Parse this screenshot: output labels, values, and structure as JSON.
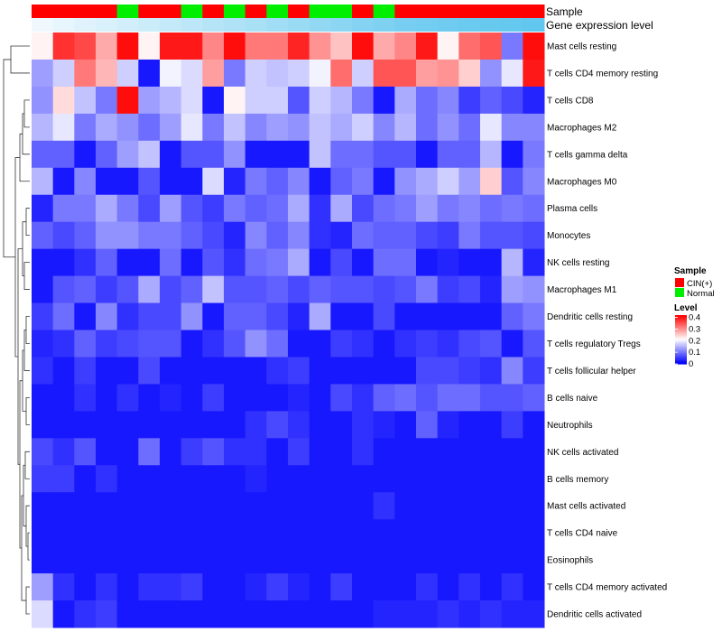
{
  "chart_data": {
    "type": "heatmap",
    "annotation_labels": [
      "Sample",
      "Gene expression level"
    ],
    "sample_groups": [
      "CIN(+)",
      "CIN(+)",
      "CIN(+)",
      "CIN(+)",
      "Normal",
      "CIN(+)",
      "CIN(+)",
      "Normal",
      "CIN(+)",
      "Normal",
      "CIN(+)",
      "Normal",
      "CIN(+)",
      "Normal",
      "Normal",
      "CIN(+)",
      "Normal",
      "CIN(+)",
      "CIN(+)",
      "CIN(+)",
      "CIN(+)",
      "CIN(+)",
      "CIN(+)",
      "CIN(+)"
    ],
    "expression_level": [
      0.0,
      0.05,
      0.1,
      0.15,
      0.2,
      0.25,
      0.3,
      0.35,
      0.4,
      0.45,
      0.5,
      0.55,
      0.6,
      0.65,
      0.7,
      0.75,
      0.8,
      0.85,
      0.88,
      0.91,
      0.94,
      0.96,
      0.98,
      1.0
    ],
    "legends": {
      "sample_title": "Sample",
      "sample_items": [
        {
          "label": "CIN(+)",
          "color": "#ff0000"
        },
        {
          "label": "Normal",
          "color": "#00ee00"
        }
      ],
      "level_title": "Level",
      "level_ticks": [
        "0.4",
        "0.3",
        "0.2",
        "0.1",
        "0"
      ],
      "level_tick_values": [
        0.4,
        0.3,
        0.2,
        0.1,
        0.0
      ],
      "level_range": [
        0,
        0.42
      ]
    },
    "colors": {
      "low": "#0000ff",
      "mid": "#ffffff",
      "high": "#ff0000",
      "strip_light": "#eef8fd",
      "strip_dark": "#62c7ee"
    },
    "rows": [
      {
        "label": "Mast cells resting",
        "values": [
          0.22,
          0.38,
          0.36,
          0.28,
          0.41,
          0.22,
          0.4,
          0.4,
          0.31,
          0.41,
          0.32,
          0.32,
          0.39,
          0.3,
          0.26,
          0.41,
          0.28,
          0.31,
          0.4,
          0.22,
          0.33,
          0.35,
          0.1,
          0.41
        ]
      },
      {
        "label": "T cells CD4 memory resting",
        "values": [
          0.13,
          0.17,
          0.32,
          0.27,
          0.17,
          0.02,
          0.2,
          0.18,
          0.29,
          0.1,
          0.17,
          0.16,
          0.17,
          0.2,
          0.33,
          0.17,
          0.35,
          0.35,
          0.29,
          0.3,
          0.25,
          0.12,
          0.19,
          0.4
        ]
      },
      {
        "label": "T cells CD8",
        "values": [
          0.12,
          0.24,
          0.16,
          0.1,
          0.41,
          0.13,
          0.15,
          0.18,
          0.02,
          0.22,
          0.17,
          0.17,
          0.07,
          0.17,
          0.15,
          0.1,
          0.02,
          0.14,
          0.09,
          0.11,
          0.05,
          0.08,
          0.06,
          0.03
        ]
      },
      {
        "label": "Macrophages M2",
        "values": [
          0.15,
          0.19,
          0.1,
          0.14,
          0.12,
          0.09,
          0.13,
          0.19,
          0.1,
          0.16,
          0.11,
          0.13,
          0.12,
          0.16,
          0.14,
          0.17,
          0.11,
          0.15,
          0.09,
          0.12,
          0.09,
          0.19,
          0.11,
          0.11
        ]
      },
      {
        "label": "T cells gamma delta",
        "values": [
          0.08,
          0.08,
          0.02,
          0.08,
          0.13,
          0.16,
          0.02,
          0.07,
          0.07,
          0.12,
          0.02,
          0.02,
          0.02,
          0.16,
          0.09,
          0.09,
          0.07,
          0.07,
          0.02,
          0.08,
          0.08,
          0.15,
          0.02,
          0.1
        ]
      },
      {
        "label": "Macrophages M0",
        "values": [
          0.15,
          0.02,
          0.11,
          0.02,
          0.02,
          0.07,
          0.02,
          0.02,
          0.18,
          0.03,
          0.1,
          0.08,
          0.11,
          0.02,
          0.08,
          0.1,
          0.02,
          0.12,
          0.14,
          0.17,
          0.13,
          0.25,
          0.07,
          0.11
        ]
      },
      {
        "label": "Plasma cells",
        "values": [
          0.03,
          0.1,
          0.1,
          0.14,
          0.1,
          0.06,
          0.13,
          0.07,
          0.05,
          0.1,
          0.08,
          0.09,
          0.14,
          0.04,
          0.14,
          0.06,
          0.09,
          0.1,
          0.13,
          0.1,
          0.11,
          0.09,
          0.1,
          0.09
        ]
      },
      {
        "label": "Monocytes",
        "values": [
          0.08,
          0.06,
          0.08,
          0.12,
          0.12,
          0.1,
          0.1,
          0.08,
          0.06,
          0.03,
          0.11,
          0.08,
          0.11,
          0.04,
          0.03,
          0.09,
          0.08,
          0.08,
          0.06,
          0.05,
          0.1,
          0.07,
          0.07,
          0.06
        ]
      },
      {
        "label": "NK cells resting",
        "values": [
          0.02,
          0.02,
          0.04,
          0.08,
          0.02,
          0.02,
          0.09,
          0.02,
          0.07,
          0.04,
          0.09,
          0.1,
          0.14,
          0.02,
          0.06,
          0.02,
          0.09,
          0.09,
          0.02,
          0.03,
          0.02,
          0.02,
          0.15,
          0.03
        ]
      },
      {
        "label": "Macrophages M1",
        "values": [
          0.02,
          0.07,
          0.08,
          0.05,
          0.07,
          0.14,
          0.06,
          0.08,
          0.16,
          0.07,
          0.07,
          0.08,
          0.06,
          0.08,
          0.07,
          0.07,
          0.06,
          0.07,
          0.1,
          0.05,
          0.06,
          0.03,
          0.13,
          0.12
        ]
      },
      {
        "label": "Dendritic cells resting",
        "values": [
          0.05,
          0.09,
          0.02,
          0.11,
          0.04,
          0.06,
          0.06,
          0.12,
          0.02,
          0.08,
          0.08,
          0.06,
          0.03,
          0.14,
          0.02,
          0.02,
          0.06,
          0.02,
          0.02,
          0.02,
          0.02,
          0.02,
          0.08,
          0.1
        ]
      },
      {
        "label": "T cells regulatory  Tregs",
        "values": [
          0.03,
          0.04,
          0.08,
          0.05,
          0.06,
          0.07,
          0.07,
          0.02,
          0.04,
          0.07,
          0.12,
          0.09,
          0.02,
          0.02,
          0.05,
          0.04,
          0.02,
          0.04,
          0.05,
          0.04,
          0.06,
          0.07,
          0.02,
          0.07
        ]
      },
      {
        "label": "T cells follicular helper",
        "values": [
          0.04,
          0.02,
          0.05,
          0.02,
          0.02,
          0.06,
          0.02,
          0.02,
          0.02,
          0.02,
          0.02,
          0.04,
          0.05,
          0.02,
          0.02,
          0.02,
          0.02,
          0.02,
          0.06,
          0.06,
          0.05,
          0.04,
          0.11,
          0.05
        ]
      },
      {
        "label": "B cells naive",
        "values": [
          0.02,
          0.02,
          0.04,
          0.02,
          0.04,
          0.02,
          0.03,
          0.02,
          0.05,
          0.02,
          0.02,
          0.02,
          0.03,
          0.02,
          0.06,
          0.04,
          0.08,
          0.09,
          0.07,
          0.09,
          0.09,
          0.07,
          0.07,
          0.08
        ]
      },
      {
        "label": "Neutrophils",
        "values": [
          0.02,
          0.02,
          0.02,
          0.02,
          0.02,
          0.02,
          0.02,
          0.02,
          0.02,
          0.02,
          0.04,
          0.06,
          0.04,
          0.02,
          0.02,
          0.04,
          0.03,
          0.02,
          0.08,
          0.03,
          0.02,
          0.02,
          0.05,
          0.02
        ]
      },
      {
        "label": "NK cells activated",
        "values": [
          0.06,
          0.04,
          0.07,
          0.02,
          0.02,
          0.09,
          0.02,
          0.05,
          0.07,
          0.04,
          0.04,
          0.02,
          0.05,
          0.02,
          0.02,
          0.04,
          0.02,
          0.02,
          0.02,
          0.02,
          0.02,
          0.02,
          0.02,
          0.02
        ]
      },
      {
        "label": "B cells memory",
        "values": [
          0.05,
          0.05,
          0.02,
          0.04,
          0.02,
          0.02,
          0.02,
          0.02,
          0.02,
          0.02,
          0.03,
          0.02,
          0.02,
          0.02,
          0.02,
          0.02,
          0.02,
          0.02,
          0.02,
          0.02,
          0.02,
          0.02,
          0.02,
          0.02
        ]
      },
      {
        "label": "Mast cells activated",
        "values": [
          0.02,
          0.02,
          0.02,
          0.02,
          0.02,
          0.02,
          0.02,
          0.02,
          0.02,
          0.02,
          0.02,
          0.02,
          0.02,
          0.02,
          0.02,
          0.02,
          0.04,
          0.02,
          0.02,
          0.02,
          0.02,
          0.02,
          0.02,
          0.02
        ]
      },
      {
        "label": "T cells CD4 naive",
        "values": [
          0.02,
          0.02,
          0.02,
          0.02,
          0.02,
          0.02,
          0.02,
          0.02,
          0.02,
          0.02,
          0.02,
          0.02,
          0.02,
          0.02,
          0.02,
          0.02,
          0.02,
          0.02,
          0.02,
          0.02,
          0.02,
          0.02,
          0.02,
          0.02
        ]
      },
      {
        "label": "Eosinophils",
        "values": [
          0.02,
          0.02,
          0.02,
          0.02,
          0.02,
          0.02,
          0.02,
          0.02,
          0.02,
          0.02,
          0.02,
          0.02,
          0.02,
          0.02,
          0.02,
          0.02,
          0.02,
          0.02,
          0.02,
          0.02,
          0.02,
          0.02,
          0.02,
          0.02
        ]
      },
      {
        "label": "T cells CD4 memory activated",
        "values": [
          0.13,
          0.04,
          0.02,
          0.04,
          0.02,
          0.04,
          0.04,
          0.05,
          0.02,
          0.02,
          0.03,
          0.05,
          0.03,
          0.02,
          0.05,
          0.02,
          0.02,
          0.02,
          0.04,
          0.02,
          0.04,
          0.02,
          0.04,
          0.02
        ]
      },
      {
        "label": "Dendritic cells activated",
        "values": [
          0.18,
          0.02,
          0.04,
          0.05,
          0.02,
          0.02,
          0.02,
          0.02,
          0.02,
          0.02,
          0.02,
          0.02,
          0.02,
          0.02,
          0.02,
          0.02,
          0.03,
          0.03,
          0.03,
          0.04,
          0.03,
          0.04,
          0.03,
          0.03
        ]
      }
    ]
  }
}
